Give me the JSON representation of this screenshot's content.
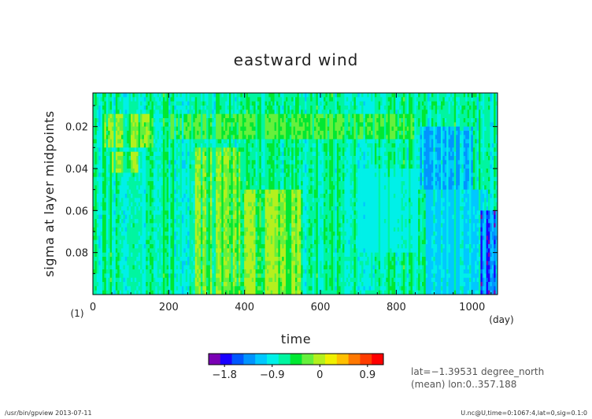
{
  "chart_data": {
    "type": "heatmap",
    "title": "eastward wind",
    "xlabel": "time",
    "ylabel": "sigma at layer midpoints",
    "x_unit": "(day)",
    "y_unit": "(1)",
    "xlim": [
      0,
      1067
    ],
    "ylim": [
      0.004,
      0.1
    ],
    "y_inverted": true,
    "x_ticks": [
      {
        "value": 0,
        "label": "0"
      },
      {
        "value": 200,
        "label": "200"
      },
      {
        "value": 400,
        "label": "400"
      },
      {
        "value": 600,
        "label": "600"
      },
      {
        "value": 800,
        "label": "800"
      },
      {
        "value": 1000,
        "label": "1000"
      }
    ],
    "y_ticks": [
      {
        "value": 0.02,
        "label": "0.02"
      },
      {
        "value": 0.04,
        "label": "0.04"
      },
      {
        "value": 0.06,
        "label": "0.06"
      },
      {
        "value": 0.08,
        "label": "0.08"
      }
    ],
    "colorbar": {
      "min": -2.1,
      "max": 1.2,
      "step": 0.3,
      "ticks": [
        {
          "value": -1.8,
          "label": "−1.8"
        },
        {
          "value": -0.9,
          "label": "−0.9"
        },
        {
          "value": 0,
          "label": "0"
        },
        {
          "value": 0.9,
          "label": "0.9"
        }
      ],
      "colors": [
        "#7a00b4",
        "#1a00ff",
        "#0057ff",
        "#0094ff",
        "#00c8ff",
        "#00f0e8",
        "#00f5a0",
        "#00e832",
        "#66f03c",
        "#b4f01e",
        "#f0f000",
        "#ffc000",
        "#ff7800",
        "#ff3c00",
        "#ff0000"
      ]
    },
    "pattern": {
      "background_value": -0.2,
      "features": [
        {
          "x_range": [
            30,
            160
          ],
          "y_range": [
            0.015,
            0.03
          ],
          "value": 0.8
        },
        {
          "x_range": [
            50,
            120
          ],
          "y_range": [
            0.032,
            0.042
          ],
          "value": 0.9
        },
        {
          "x_range": [
            270,
            390
          ],
          "y_range": [
            0.03,
            0.1
          ],
          "value": 0.8
        },
        {
          "x_range": [
            400,
            550
          ],
          "y_range": [
            0.05,
            0.1
          ],
          "value": 0.9
        },
        {
          "x_range": [
            200,
            850
          ],
          "y_range": [
            0.015,
            0.025
          ],
          "value": 0.5
        },
        {
          "x_range": [
            860,
            1000
          ],
          "y_range": [
            0.02,
            0.05
          ],
          "value": -1.2
        },
        {
          "x_range": [
            880,
            1040
          ],
          "y_range": [
            0.05,
            0.1
          ],
          "value": -0.9
        },
        {
          "x_range": [
            1020,
            1067
          ],
          "y_range": [
            0.06,
            0.1
          ],
          "value": -1.9
        },
        {
          "x_range": [
            700,
            860
          ],
          "y_range": [
            0.04,
            0.08
          ],
          "value": -0.5
        }
      ]
    }
  },
  "info": {
    "lat_line": "lat=−1.39531 degree_north",
    "mean_line": "(mean) lon:0..357.188"
  },
  "footer": {
    "left": "/usr/bin/gpview  2013-07-11",
    "right": "U.nc@U,time=0:1067:4,lat=0,sig=0.1:0"
  },
  "colors": {
    "text": "#222222",
    "frame": "#000000",
    "info_text": "#555555"
  }
}
